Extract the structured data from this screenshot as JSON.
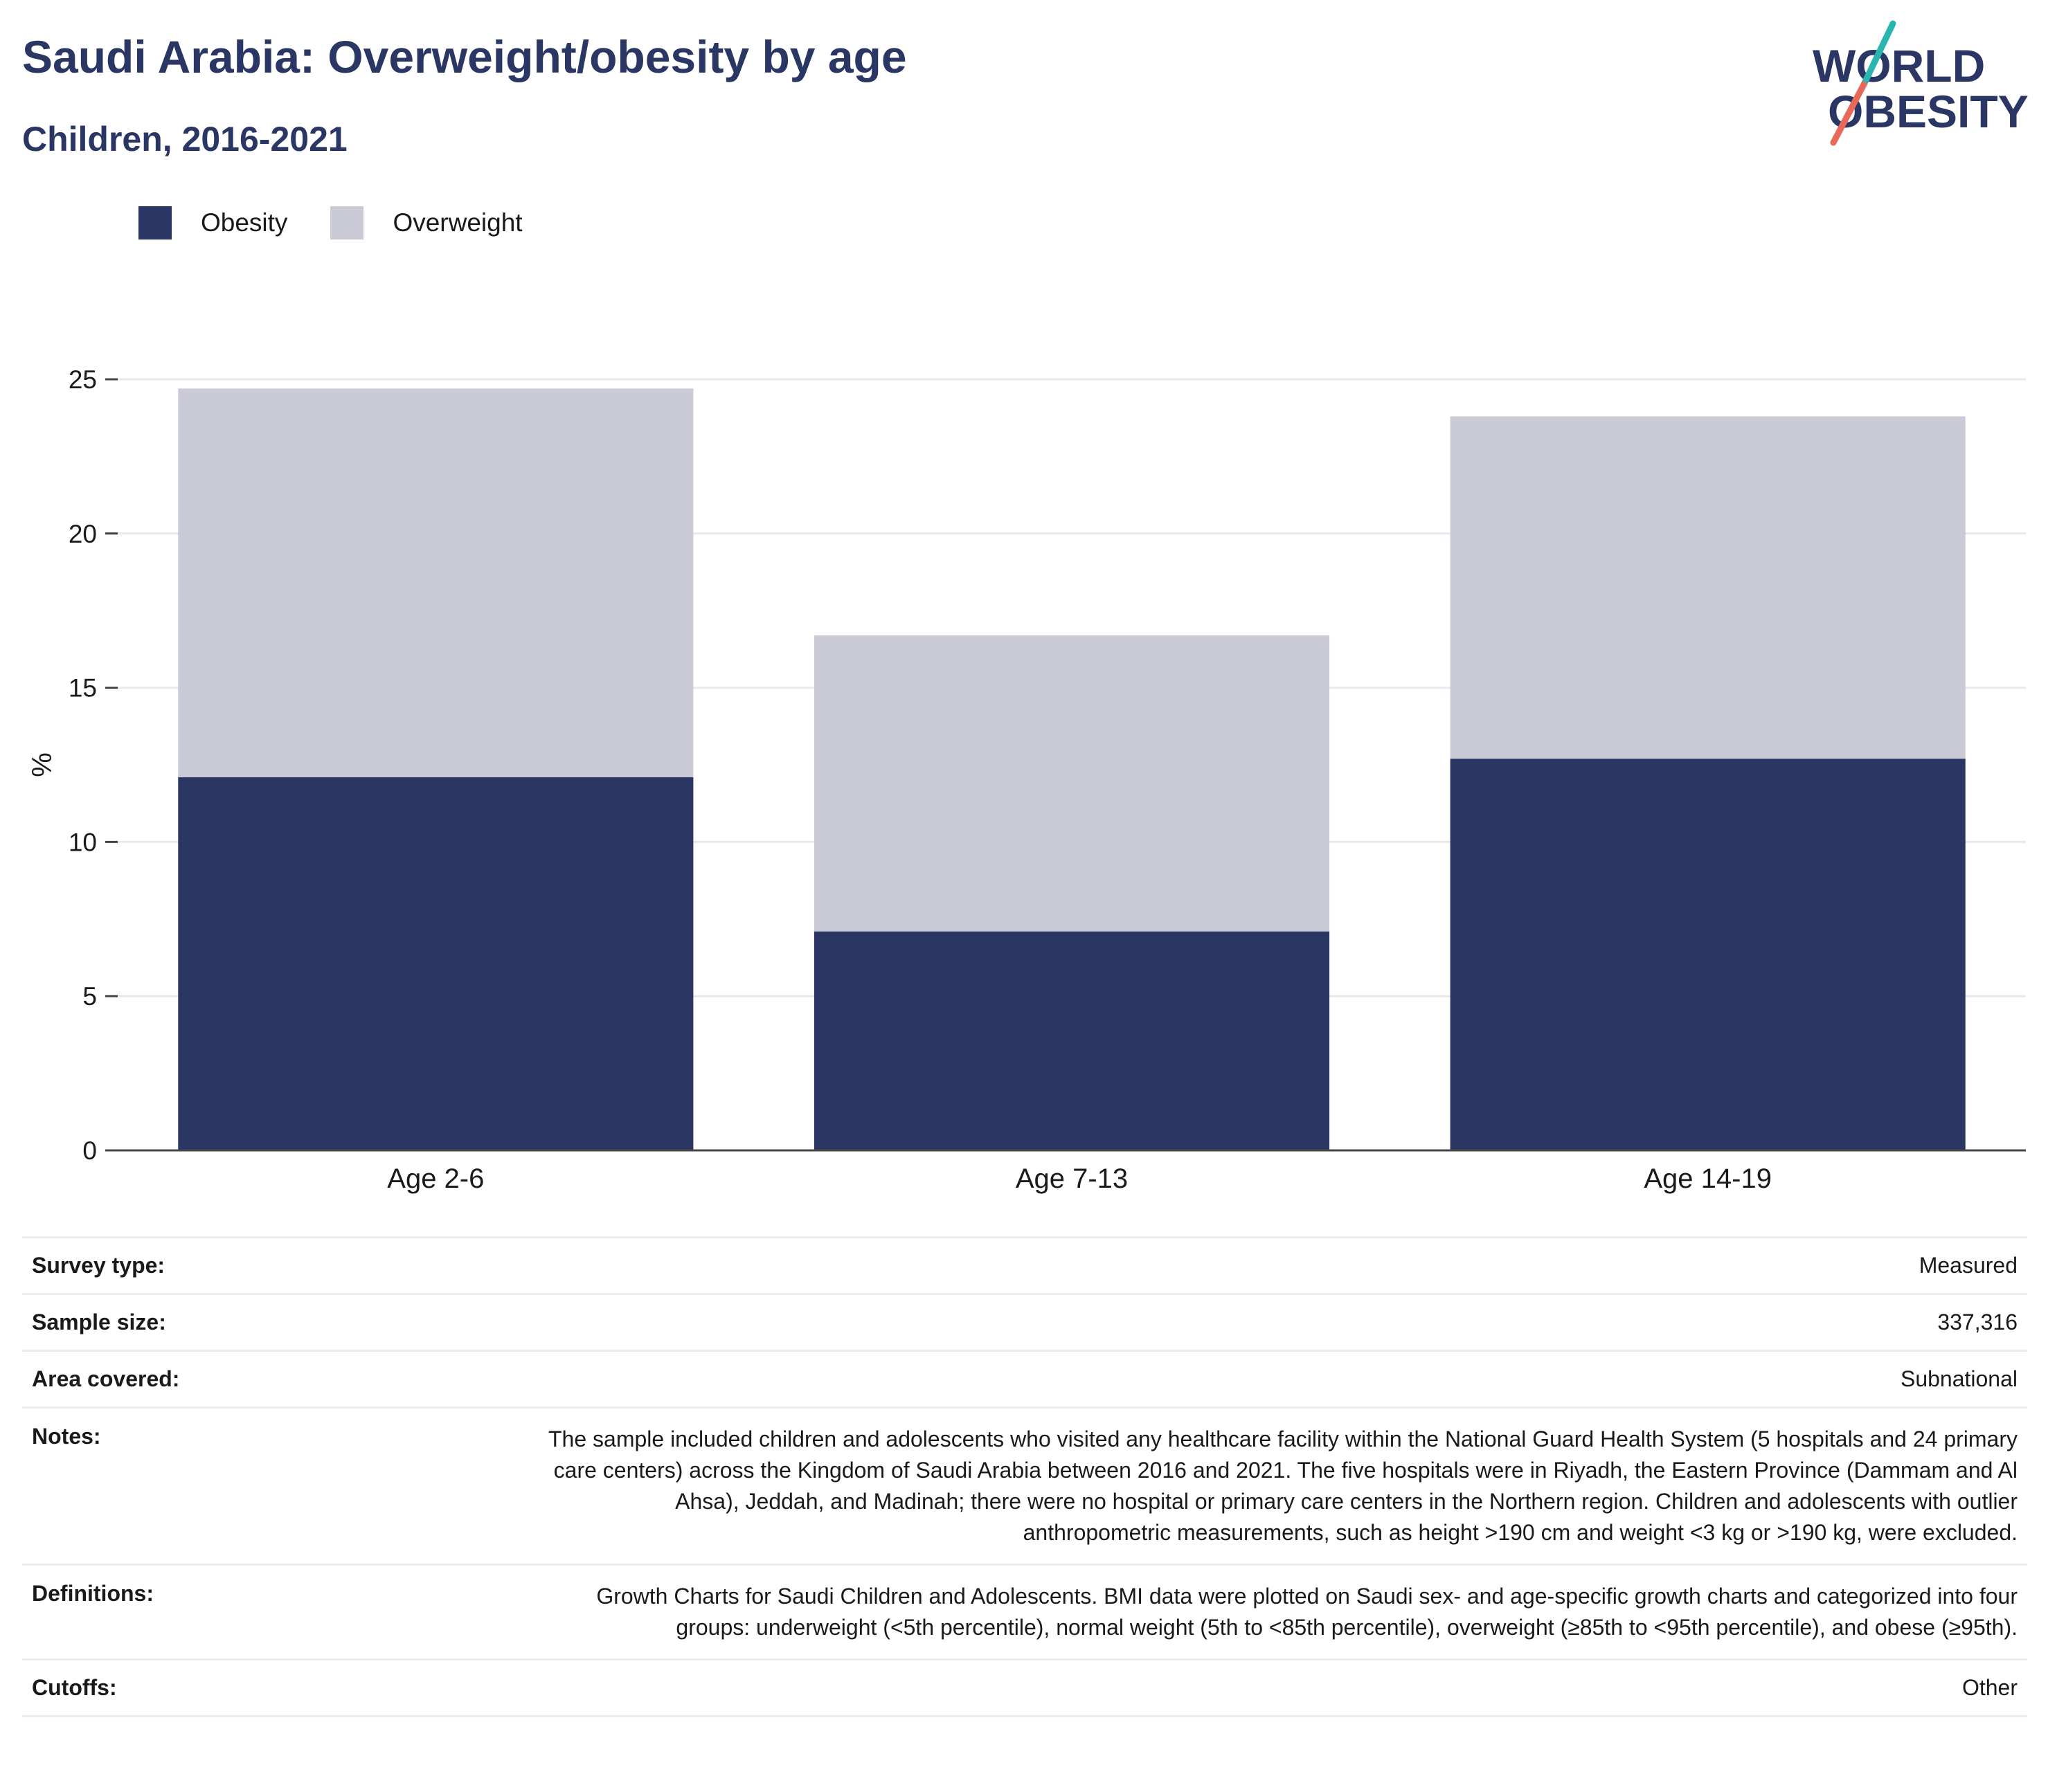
{
  "header": {
    "title": "Saudi Arabia: Overweight/obesity by age",
    "subtitle": "Children, 2016-2021"
  },
  "logo": {
    "line1": "WORLD",
    "line2": "OBESITY",
    "colors": {
      "text": "#2a3663",
      "slash_top": "#2bb5b0",
      "slash_bottom": "#e8685a"
    }
  },
  "colors": {
    "obesity": "#2a3663",
    "overweight": "#cacbd7",
    "grid": "#e8e8ee",
    "axis": "#444444"
  },
  "chart_data": {
    "type": "bar",
    "stacked": true,
    "categories": [
      "Age 2-6",
      "Age 7-13",
      "Age 14-19"
    ],
    "series": [
      {
        "name": "Obesity",
        "values": [
          12.1,
          7.1,
          12.7
        ]
      },
      {
        "name": "Overweight",
        "values": [
          12.6,
          9.6,
          11.1
        ]
      }
    ],
    "title": "",
    "xlabel": "",
    "ylabel": "%",
    "ylim": [
      0,
      25
    ],
    "yticks": [
      0,
      5,
      10,
      15,
      20,
      25
    ],
    "grid": true,
    "legend": "top-left"
  },
  "meta": {
    "survey_type": {
      "label": "Survey type:",
      "value": "Measured"
    },
    "sample_size": {
      "label": "Sample size:",
      "value": "337,316"
    },
    "area_covered": {
      "label": "Area covered:",
      "value": "Subnational"
    },
    "notes": {
      "label": "Notes:",
      "value": "The sample included children and adolescents who visited any healthcare facility within the National Guard Health System (5 hospitals and 24 primary care centers) across the Kingdom of Saudi Arabia between 2016 and 2021. The five hospitals were in Riyadh, the Eastern Province (Dammam and Al Ahsa), Jeddah, and Madinah; there were no hospital or primary care centers in the Northern region. Children and adolescents with outlier anthropometric measurements, such as height >190 cm and weight <3 kg or >190 kg, were excluded."
    },
    "definitions": {
      "label": "Definitions:",
      "value": "Growth Charts for Saudi Children and Adolescents. BMI data were plotted on Saudi sex- and age-specific growth charts and categorized into four groups: underweight (<5th percentile), normal weight (5th to <85th percentile), overweight (≥85th to <95th percentile), and obese (≥95th)."
    },
    "cutoffs": {
      "label": "Cutoffs:",
      "value": "Other"
    }
  }
}
